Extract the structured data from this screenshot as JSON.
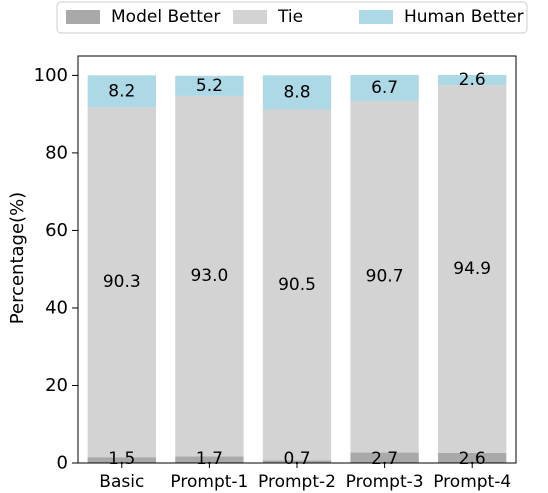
{
  "chart_data": {
    "type": "bar",
    "stacked": true,
    "categories": [
      "Basic",
      "Prompt-1",
      "Prompt-2",
      "Prompt-3",
      "Prompt-4"
    ],
    "series": [
      {
        "name": "Model Better",
        "values": [
          1.5,
          1.7,
          0.7,
          2.7,
          2.6
        ],
        "color": "#a9a9a9"
      },
      {
        "name": "Tie",
        "values": [
          90.3,
          93.0,
          90.5,
          90.7,
          94.9
        ],
        "color": "#d3d3d3"
      },
      {
        "name": "Human Better",
        "values": [
          8.2,
          5.2,
          8.8,
          6.7,
          2.6
        ],
        "color": "#add8e6"
      }
    ],
    "labels": [
      [
        "1.5",
        "1.7",
        "0.7",
        "2.7",
        "2.6"
      ],
      [
        "90.3",
        "93.0",
        "90.5",
        "90.7",
        "94.9"
      ],
      [
        "8.2",
        "5.2",
        "8.8",
        "6.7",
        "2.6"
      ]
    ],
    "ylabel": "Percentage(%)",
    "ylim": [
      0,
      105
    ],
    "yticks": [
      0,
      20,
      40,
      60,
      80,
      100
    ],
    "legend_position": "top-center",
    "grid": false
  }
}
